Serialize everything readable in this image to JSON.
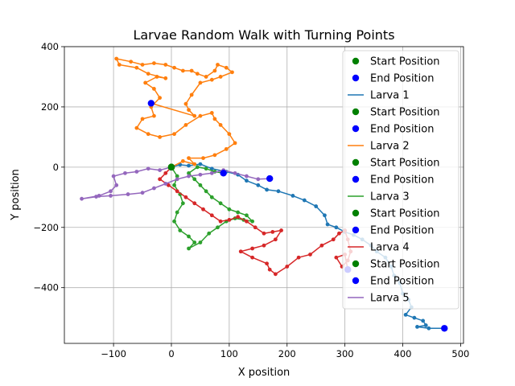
{
  "chart_data": {
    "type": "line",
    "title": "Larvae Random Walk with Turning Points",
    "xlabel": "X position",
    "ylabel": "Y position",
    "xlim": [
      -185,
      505
    ],
    "ylim": [
      -585,
      400
    ],
    "xticks": [
      -100,
      0,
      100,
      200,
      300,
      400,
      500
    ],
    "yticks": [
      -400,
      -200,
      0,
      200,
      400
    ],
    "grid": true,
    "legend_position": "upper-right",
    "start_marker_color": "#008000",
    "end_marker_color": "#0000ff",
    "legend": [
      {
        "label": "Start Position",
        "kind": "start",
        "color": "#008000"
      },
      {
        "label": "End Position",
        "kind": "end",
        "color": "#0000ff"
      },
      {
        "label": "Larva 1",
        "kind": "line",
        "color": "#1f77b4"
      },
      {
        "label": "Start Position",
        "kind": "start",
        "color": "#008000"
      },
      {
        "label": "End Position",
        "kind": "end",
        "color": "#0000ff"
      },
      {
        "label": "Larva 2",
        "kind": "line",
        "color": "#ff7f0e"
      },
      {
        "label": "Start Position",
        "kind": "start",
        "color": "#008000"
      },
      {
        "label": "End Position",
        "kind": "end",
        "color": "#0000ff"
      },
      {
        "label": "Larva 3",
        "kind": "line",
        "color": "#2ca02c"
      },
      {
        "label": "Start Position",
        "kind": "start",
        "color": "#008000"
      },
      {
        "label": "End Position",
        "kind": "end",
        "color": "#0000ff"
      },
      {
        "label": "Larva 4",
        "kind": "line",
        "color": "#d62728"
      },
      {
        "label": "Start Position",
        "kind": "start",
        "color": "#008000"
      },
      {
        "label": "End Position",
        "kind": "end",
        "color": "#0000ff"
      },
      {
        "label": "Larva 5",
        "kind": "line",
        "color": "#9467bd"
      }
    ],
    "series": [
      {
        "name": "Larva 1",
        "color": "#1f77b4",
        "points": [
          [
            0,
            0
          ],
          [
            15,
            8
          ],
          [
            30,
            5
          ],
          [
            50,
            10
          ],
          [
            70,
            -5
          ],
          [
            95,
            -15
          ],
          [
            115,
            -25
          ],
          [
            130,
            -45
          ],
          [
            150,
            -60
          ],
          [
            165,
            -75
          ],
          [
            185,
            -80
          ],
          [
            210,
            -95
          ],
          [
            230,
            -110
          ],
          [
            250,
            -130
          ],
          [
            265,
            -160
          ],
          [
            270,
            -190
          ],
          [
            285,
            -200
          ],
          [
            300,
            -215
          ],
          [
            315,
            -225
          ],
          [
            330,
            -240
          ],
          [
            345,
            -260
          ],
          [
            355,
            -280
          ],
          [
            370,
            -300
          ],
          [
            380,
            -330
          ],
          [
            385,
            -360
          ],
          [
            395,
            -385
          ],
          [
            400,
            -420
          ],
          [
            410,
            -440
          ],
          [
            415,
            -465
          ],
          [
            405,
            -490
          ],
          [
            420,
            -500
          ],
          [
            435,
            -510
          ],
          [
            440,
            -525
          ],
          [
            425,
            -530
          ],
          [
            445,
            -535
          ],
          [
            472,
            -535
          ]
        ]
      },
      {
        "name": "Larva 2",
        "color": "#ff7f0e",
        "points": [
          [
            0,
            0
          ],
          [
            20,
            20
          ],
          [
            40,
            10
          ],
          [
            30,
            30
          ],
          [
            55,
            30
          ],
          [
            75,
            40
          ],
          [
            95,
            60
          ],
          [
            110,
            80
          ],
          [
            100,
            110
          ],
          [
            85,
            140
          ],
          [
            75,
            160
          ],
          [
            70,
            180
          ],
          [
            50,
            170
          ],
          [
            25,
            140
          ],
          [
            5,
            110
          ],
          [
            -20,
            100
          ],
          [
            -40,
            110
          ],
          [
            -60,
            130
          ],
          [
            -50,
            160
          ],
          [
            -30,
            170
          ],
          [
            -35,
            200
          ],
          [
            -20,
            230
          ],
          [
            -30,
            260
          ],
          [
            -45,
            280
          ],
          [
            -25,
            300
          ],
          [
            -10,
            295
          ],
          [
            -40,
            310
          ],
          [
            -60,
            330
          ],
          [
            -90,
            340
          ],
          [
            -95,
            360
          ],
          [
            -70,
            350
          ],
          [
            -50,
            340
          ],
          [
            -30,
            345
          ],
          [
            -10,
            340
          ],
          [
            5,
            330
          ],
          [
            20,
            320
          ],
          [
            35,
            320
          ],
          [
            45,
            310
          ],
          [
            60,
            300
          ],
          [
            75,
            320
          ],
          [
            80,
            340
          ],
          [
            95,
            330
          ],
          [
            105,
            315
          ],
          [
            85,
            300
          ],
          [
            70,
            290
          ],
          [
            50,
            280
          ],
          [
            35,
            240
          ],
          [
            25,
            210
          ],
          [
            30,
            190
          ],
          [
            40,
            170
          ],
          [
            -35,
            212
          ]
        ]
      },
      {
        "name": "Larva 3",
        "color": "#2ca02c",
        "points": [
          [
            0,
            0
          ],
          [
            10,
            -30
          ],
          [
            5,
            -60
          ],
          [
            15,
            -90
          ],
          [
            20,
            -120
          ],
          [
            10,
            -150
          ],
          [
            5,
            -180
          ],
          [
            15,
            -210
          ],
          [
            30,
            -230
          ],
          [
            40,
            -250
          ],
          [
            30,
            -270
          ],
          [
            50,
            -250
          ],
          [
            65,
            -220
          ],
          [
            80,
            -200
          ],
          [
            95,
            -180
          ],
          [
            110,
            -170
          ],
          [
            125,
            -175
          ],
          [
            140,
            -180
          ],
          [
            130,
            -160
          ],
          [
            115,
            -150
          ],
          [
            100,
            -140
          ],
          [
            85,
            -120
          ],
          [
            70,
            -100
          ],
          [
            60,
            -80
          ],
          [
            50,
            -60
          ],
          [
            40,
            -40
          ],
          [
            30,
            -20
          ],
          [
            45,
            0
          ],
          [
            60,
            -5
          ],
          [
            75,
            -15
          ],
          [
            90,
            -20
          ]
        ]
      },
      {
        "name": "Larva 4",
        "color": "#d62728",
        "points": [
          [
            0,
            0
          ],
          [
            -10,
            -20
          ],
          [
            -20,
            -40
          ],
          [
            -5,
            -60
          ],
          [
            10,
            -80
          ],
          [
            25,
            -100
          ],
          [
            40,
            -120
          ],
          [
            55,
            -140
          ],
          [
            70,
            -160
          ],
          [
            85,
            -180
          ],
          [
            100,
            -175
          ],
          [
            115,
            -165
          ],
          [
            130,
            -180
          ],
          [
            145,
            -200
          ],
          [
            160,
            -220
          ],
          [
            175,
            -215
          ],
          [
            190,
            -210
          ],
          [
            180,
            -240
          ],
          [
            160,
            -260
          ],
          [
            140,
            -270
          ],
          [
            120,
            -280
          ],
          [
            140,
            -300
          ],
          [
            165,
            -320
          ],
          [
            170,
            -340
          ],
          [
            180,
            -355
          ],
          [
            200,
            -330
          ],
          [
            220,
            -300
          ],
          [
            240,
            -290
          ],
          [
            260,
            -260
          ],
          [
            280,
            -240
          ],
          [
            290,
            -220
          ],
          [
            300,
            -210
          ],
          [
            305,
            -240
          ],
          [
            310,
            -280
          ],
          [
            305,
            -310
          ],
          [
            295,
            -330
          ],
          [
            285,
            -300
          ],
          [
            300,
            -290
          ],
          [
            305,
            -340
          ]
        ]
      },
      {
        "name": "Larva 5",
        "color": "#9467bd",
        "points": [
          [
            0,
            0
          ],
          [
            -20,
            -10
          ],
          [
            -40,
            -5
          ],
          [
            -60,
            -15
          ],
          [
            -80,
            -20
          ],
          [
            -100,
            -30
          ],
          [
            -95,
            -60
          ],
          [
            -105,
            -80
          ],
          [
            -125,
            -95
          ],
          [
            -155,
            -105
          ],
          [
            -130,
            -98
          ],
          [
            -105,
            -95
          ],
          [
            -75,
            -90
          ],
          [
            -50,
            -85
          ],
          [
            -30,
            -70
          ],
          [
            -10,
            -55
          ],
          [
            10,
            -40
          ],
          [
            30,
            -30
          ],
          [
            50,
            -25
          ],
          [
            70,
            -20
          ],
          [
            90,
            -10
          ],
          [
            110,
            -20
          ],
          [
            130,
            -30
          ],
          [
            150,
            -40
          ],
          [
            170,
            -38
          ]
        ]
      }
    ]
  }
}
